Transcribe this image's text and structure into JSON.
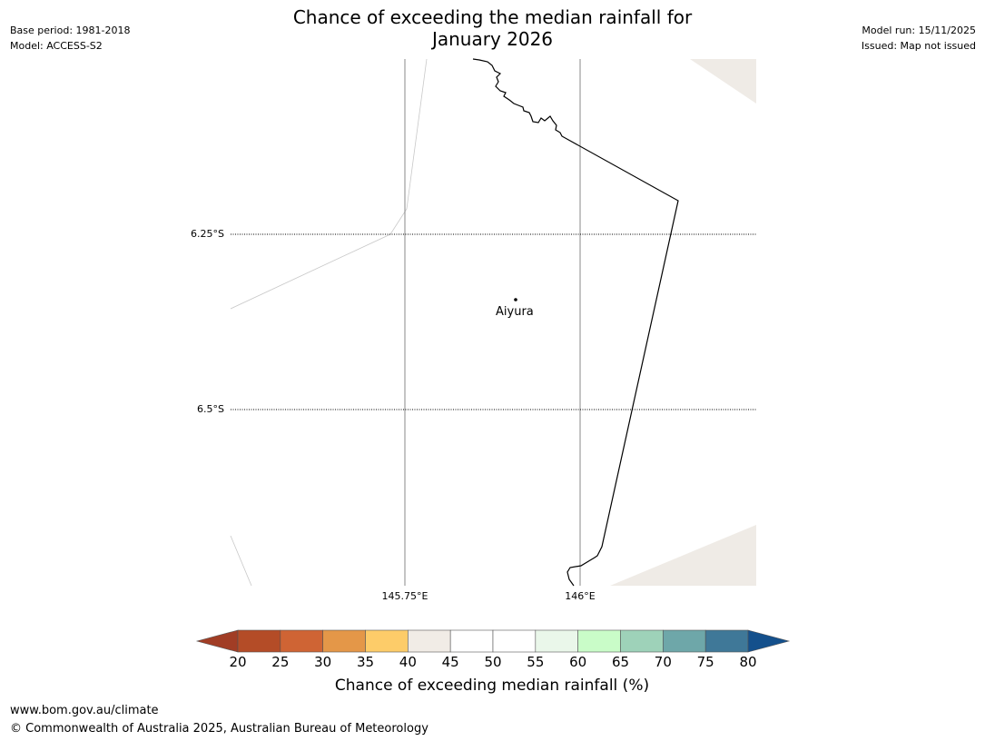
{
  "header": {
    "title_line1": "Chance of exceeding the median rainfall for",
    "title_line2": "January 2026",
    "base_period": "Base period: 1981-2018",
    "model": "Model: ACCESS-S2",
    "model_run": "Model run: 15/11/2025",
    "issued": "Issued: Map not issued"
  },
  "map": {
    "lat_labels": [
      "6.25°S",
      "6.5°S"
    ],
    "lon_labels": [
      "145.75°E",
      "146°E"
    ],
    "location": {
      "name": "Aiyura"
    },
    "colors": {
      "land_shade": "#efebe6",
      "border": "#000000",
      "gridline": "#808080"
    }
  },
  "legend": {
    "title": "Chance of exceeding median rainfall (%)",
    "ticks": [
      "20",
      "25",
      "30",
      "35",
      "40",
      "45",
      "50",
      "55",
      "60",
      "65",
      "70",
      "75",
      "80"
    ],
    "colors": [
      "#a13d25",
      "#b44c27",
      "#cf6434",
      "#e49748",
      "#fdcc69",
      "#f1ece6",
      "#ffffff",
      "#ffffff",
      "#eaf7ea",
      "#c9fcc8",
      "#9ed2b9",
      "#6ea7a9",
      "#3f7898",
      "#14508c"
    ]
  },
  "footer": {
    "url": "www.bom.gov.au/climate",
    "copyright": "© Commonwealth of Australia 2025, Australian Bureau of Meteorology"
  }
}
